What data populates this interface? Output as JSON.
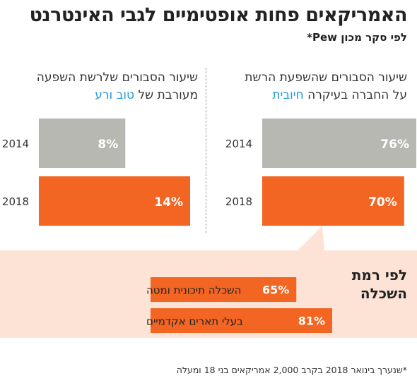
{
  "header": {
    "title": "האמריקאים פחות אופטימיים לגבי האינטרנט",
    "subtitle": "לפי סקר מכון Pew*"
  },
  "panels": {
    "right": {
      "line1": "שיעור הסבורים שהשפעת הרשת",
      "line2_text": "על החברה בעיקרה ",
      "line2_highlight": "חיובית"
    },
    "left": {
      "line1": "שיעור הסבורים שלרשת השפעה",
      "line2_text": "מעורבת של ",
      "line2_highlight": "טוב ורע"
    }
  },
  "education": {
    "heading_line1": "לפי רמת",
    "heading_line2": "השכלה"
  },
  "footnote": "*שנערך בינואר 2018 בקרב 2,000 אמריקאים בני 18 ומעלה",
  "colors": {
    "orange": "#f26522",
    "gray": "#b8b8b2",
    "highlight_blue": "#1f9ad6",
    "pink_bg": "#fde3d6"
  },
  "chart_data": [
    {
      "type": "bar",
      "title": "שיעור הסבורים שהשפעת הרשת על החברה בעיקרה חיובית",
      "categories": [
        "2014",
        "2018"
      ],
      "values": [
        76,
        70
      ],
      "value_labels": [
        "76%",
        "70%"
      ],
      "unit": "%"
    },
    {
      "type": "bar",
      "title": "שיעור הסבורים שלרשת השפעה מעורבת של טוב ורע",
      "categories": [
        "2014",
        "2018"
      ],
      "values": [
        8,
        14
      ],
      "value_labels": [
        "8%",
        "14%"
      ],
      "unit": "%"
    },
    {
      "type": "bar",
      "title": "לפי רמת השכלה",
      "categories": [
        "השכלה תיכונית ומטה",
        "בעלי תארים אקדמיים"
      ],
      "values": [
        65,
        81
      ],
      "value_labels": [
        "65%",
        "81%"
      ],
      "unit": "%"
    }
  ]
}
